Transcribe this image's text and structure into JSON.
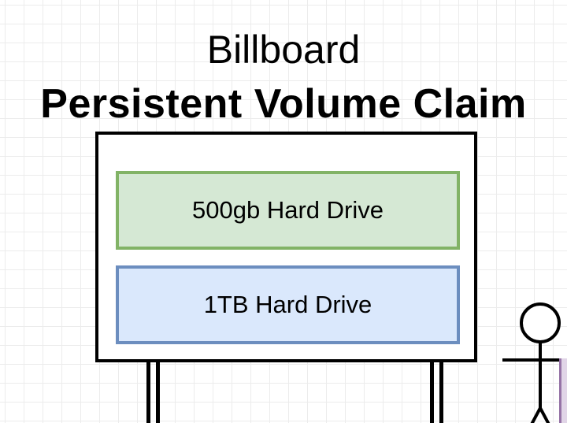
{
  "title": {
    "line1": "Billboard",
    "line2": "Persistent Volume Claim"
  },
  "billboard": {
    "drives": [
      {
        "label": "500gb Hard Drive",
        "color": "#d5e8d4",
        "border": "#82b366"
      },
      {
        "label": "1TB Hard Drive",
        "color": "#dae8fc",
        "border": "#6c8ebf"
      }
    ]
  },
  "colors": {
    "grid": "#ececec",
    "outline": "#000000",
    "purple_fill": "#e1d5e7",
    "purple_border": "#9673a6"
  }
}
